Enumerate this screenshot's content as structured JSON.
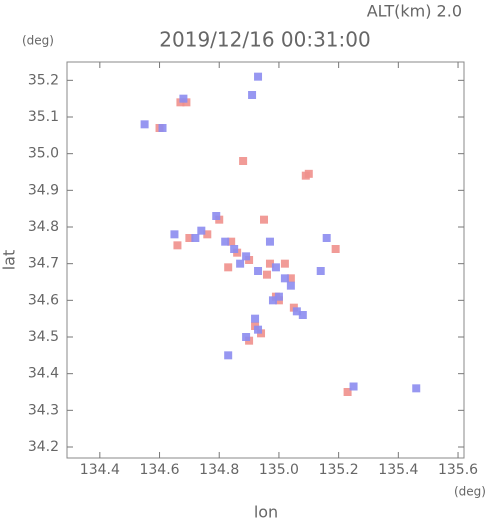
{
  "subtitle": "ALT(km) 2.0",
  "chart_data": {
    "type": "scatter",
    "title": "2019/12/16 00:31:00",
    "x_label": "lon",
    "y_label": "lat",
    "x_unit": "(deg)",
    "y_unit": "(deg)",
    "xlim": [
      134.29,
      135.62
    ],
    "ylim": [
      34.17,
      35.25
    ],
    "xticks": [
      134.4,
      134.6,
      134.8,
      {
        "value": 135,
        "label": "135.0"
      },
      135.2,
      135.4,
      135.6
    ],
    "yticks": [
      34.2,
      34.3,
      34.4,
      34.5,
      34.6,
      34.7,
      34.8,
      34.9,
      {
        "value": 35,
        "label": "35.0"
      },
      35.1,
      35.2
    ],
    "series": [
      {
        "color": "#f0908c",
        "x": [
          134.67,
          134.69,
          134.6,
          134.88,
          135.1,
          135.09,
          134.7,
          134.8,
          134.84,
          134.86,
          134.9,
          134.95,
          134.97,
          135.02,
          135.04,
          134.99,
          135.05,
          134.92,
          134.94,
          134.9,
          135.19,
          135.23,
          134.76,
          134.83,
          134.66,
          135.0,
          134.96
        ],
        "values": [
          35.14,
          35.14,
          35.07,
          34.98,
          34.945,
          34.94,
          34.77,
          34.82,
          34.76,
          34.73,
          34.71,
          34.82,
          34.7,
          34.7,
          34.66,
          34.61,
          34.58,
          34.53,
          34.51,
          34.49,
          34.74,
          34.35,
          34.78,
          34.69,
          34.75,
          34.6,
          34.67
        ]
      },
      {
        "color": "#8c8cf0",
        "x": [
          134.68,
          134.55,
          134.61,
          134.93,
          134.91,
          134.65,
          134.72,
          134.79,
          134.82,
          134.85,
          134.89,
          134.93,
          134.97,
          134.99,
          135.02,
          135.04,
          134.98,
          135.0,
          135.06,
          134.93,
          134.89,
          134.92,
          135.16,
          135.14,
          135.25,
          135.46,
          134.83,
          134.87,
          134.74,
          135.08
        ],
        "values": [
          35.15,
          35.08,
          35.07,
          35.21,
          35.16,
          34.78,
          34.77,
          34.83,
          34.76,
          34.74,
          34.72,
          34.68,
          34.76,
          34.69,
          34.66,
          34.64,
          34.6,
          34.61,
          34.57,
          34.52,
          34.5,
          34.55,
          34.77,
          34.68,
          34.365,
          34.36,
          34.45,
          34.7,
          34.79,
          34.56
        ]
      }
    ]
  }
}
